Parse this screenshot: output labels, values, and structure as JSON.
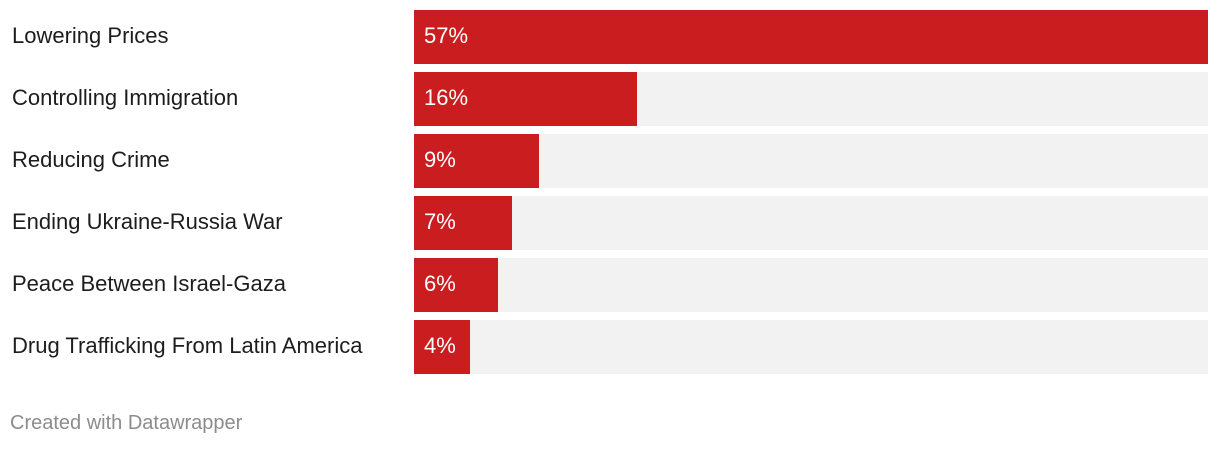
{
  "chart_data": {
    "type": "bar",
    "orientation": "horizontal",
    "categories": [
      "Lowering Prices",
      "Controlling Immigration",
      "Reducing Crime",
      "Ending Ukraine-Russia War",
      "Peace Between Israel-Gaza",
      "Drug Trafficking From Latin America"
    ],
    "values": [
      57,
      16,
      9,
      7,
      6,
      4
    ],
    "value_labels": [
      "57%",
      "16%",
      "9%",
      "7%",
      "6%",
      "4%"
    ],
    "xlim": [
      0,
      57
    ],
    "title": "",
    "xlabel": "",
    "ylabel": "",
    "grid": false,
    "colors": {
      "bar": "#c91d1f",
      "track": "#f2f2f2",
      "label": "#1d1d1d",
      "value_label": "#ffffff",
      "footer": "#8c8c8c"
    }
  },
  "footer": {
    "credit": "Created with Datawrapper"
  }
}
